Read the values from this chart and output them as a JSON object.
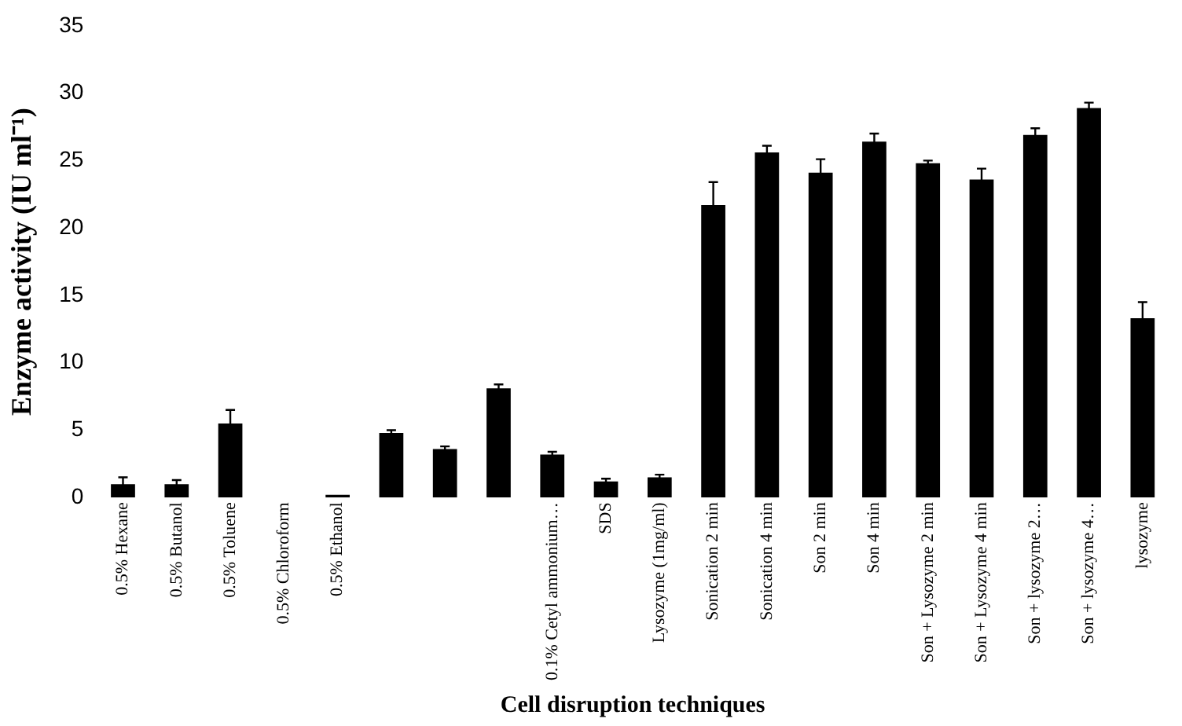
{
  "chart_data": {
    "type": "bar",
    "xlabel": "Cell disruption techniques",
    "ylabel": "Enzyme activity (IU ml⁻¹)",
    "categories": [
      "0.5% Hexane",
      "0.5% Butanol",
      "0.5% Toluene",
      "0.5% Chloroform",
      "0.5% Ethanol",
      null,
      null,
      null,
      "0.1% Cetyl ammonium…",
      "SDS",
      "Lysozyme (1mg/ml)",
      "Sonication 2 min",
      "Sonication 4 min",
      "Son 2 min",
      "Son 4 min",
      "Son + Lysozyme 2 min",
      "Son + Lysozyme 4 min",
      "Son + lysozyme 2…",
      "Son + lysozyme 4…",
      "lysozyme"
    ],
    "values": [
      1.0,
      1.0,
      5.5,
      0,
      0.2,
      4.8,
      3.6,
      8.1,
      3.2,
      1.2,
      1.5,
      21.7,
      25.6,
      24.1,
      26.4,
      24.8,
      23.6,
      26.9,
      28.9,
      13.3
    ],
    "errors": [
      0.5,
      0.3,
      1.0,
      null,
      null,
      0.2,
      0.2,
      0.3,
      0.2,
      0.2,
      0.2,
      1.7,
      0.5,
      1.0,
      0.6,
      0.2,
      0.8,
      0.5,
      0.4,
      1.2
    ],
    "color": "#000000",
    "ylim": [
      0,
      35
    ],
    "yticks": [
      0,
      5,
      10,
      15,
      20,
      25,
      30,
      35
    ],
    "grid": false,
    "legend": false
  }
}
